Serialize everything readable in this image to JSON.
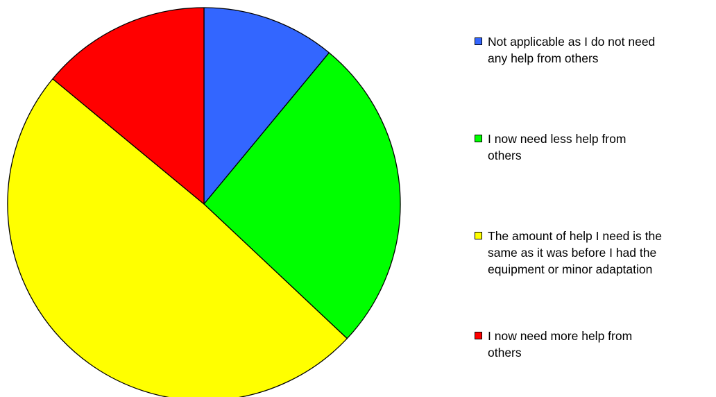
{
  "chart_data": {
    "type": "pie",
    "categories": [
      "Not applicable as I do not need\nany help from others",
      "I now need less help from\nothers",
      "The amount of help I need is the\nsame as it was before I had the\nequipment or minor adaptation",
      "I now need more help from\nothers"
    ],
    "values": [
      11,
      26,
      49,
      14
    ],
    "colors": [
      "#3366FF",
      "#00FF00",
      "#FFFF00",
      "#FF0000"
    ],
    "legend_position": "right",
    "start_angle": "top",
    "direction": "clockwise"
  }
}
